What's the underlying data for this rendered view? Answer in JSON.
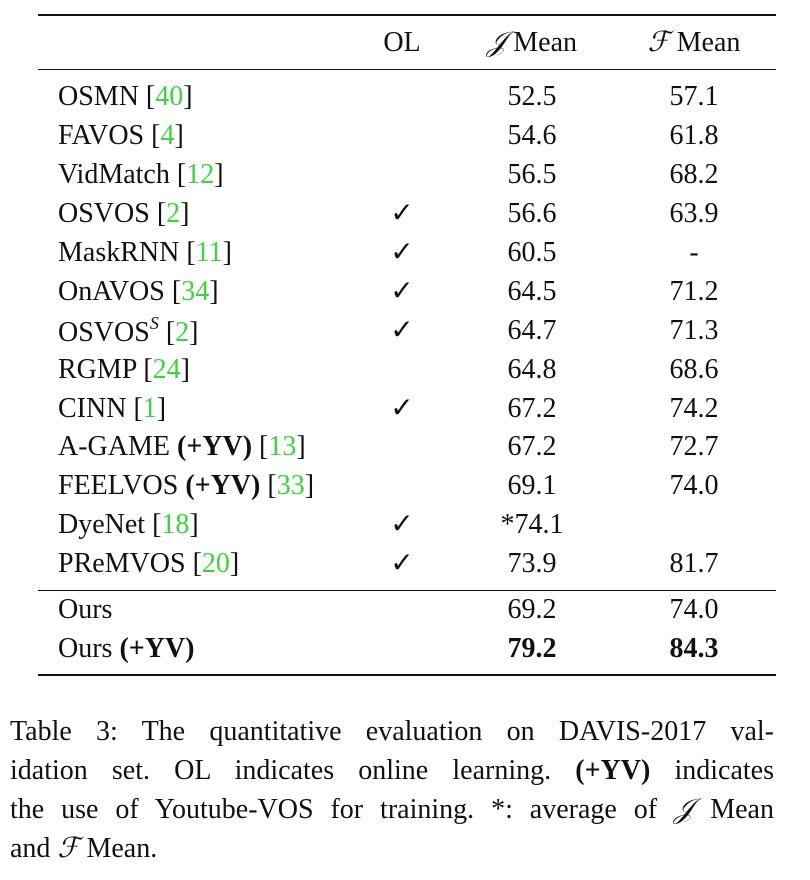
{
  "table": {
    "headers": {
      "method": "",
      "ol": "OL",
      "j_symbol": "𝒥",
      "j_text": " Mean",
      "f_symbol": "ℱ",
      "f_text": " Mean"
    },
    "check_glyph": "✓",
    "rows": [
      {
        "name": "OSMN",
        "suffix": "",
        "cite": "40",
        "ol": "",
        "j": "52.5",
        "f": "57.1"
      },
      {
        "name": "FAVOS",
        "suffix": "",
        "cite": "4",
        "ol": "",
        "j": "54.6",
        "f": "61.8"
      },
      {
        "name": "VidMatch",
        "suffix": "",
        "cite": "12",
        "ol": "",
        "j": "56.5",
        "f": "68.2"
      },
      {
        "name": "OSVOS",
        "suffix": "",
        "cite": "2",
        "ol": "✓",
        "j": "56.6",
        "f": "63.9"
      },
      {
        "name": "MaskRNN",
        "suffix": "",
        "cite": "11",
        "ol": "✓",
        "j": "60.5",
        "f": "-"
      },
      {
        "name": "OnAVOS",
        "suffix": "",
        "cite": "34",
        "ol": "✓",
        "j": "64.5",
        "f": "71.2"
      },
      {
        "name": "OSVOS",
        "sup": "S",
        "suffix": "",
        "cite": "2",
        "ol": "✓",
        "j": "64.7",
        "f": "71.3"
      },
      {
        "name": "RGMP",
        "suffix": "",
        "cite": "24",
        "ol": "",
        "j": "64.8",
        "f": "68.6"
      },
      {
        "name": "CINN",
        "suffix": "",
        "cite": "1",
        "ol": "✓",
        "j": "67.2",
        "f": "74.2"
      },
      {
        "name": "A-GAME",
        "suffix": "(+YV)",
        "cite": "13",
        "ol": "",
        "j": "67.2",
        "f": "72.7"
      },
      {
        "name": "FEELVOS",
        "suffix": "(+YV)",
        "cite": "33",
        "ol": "",
        "j": "69.1",
        "f": "74.0"
      },
      {
        "name": "DyeNet",
        "suffix": "",
        "cite": "18",
        "ol": "✓",
        "j": "*74.1",
        "f": ""
      },
      {
        "name": "PReMVOS",
        "suffix": "",
        "cite": "20",
        "ol": "✓",
        "j": "73.9",
        "f": "81.7"
      }
    ],
    "ours": [
      {
        "name": "Ours",
        "suffix": "",
        "j": "69.2",
        "f": "74.0",
        "bold": false
      },
      {
        "name": "Ours",
        "suffix": "(+YV)",
        "j": "79.2",
        "f": "84.3",
        "bold": true
      }
    ]
  },
  "caption": {
    "line1": "Table 3: The quantitative evaluation on DAVIS-2017 val-",
    "line2": "idation set. OL indicates online learning.",
    "line2_bold": "(+YV)",
    "line2_end": " indicates",
    "line3": "the use of Youtube-VOS for training. *: average of ",
    "line3_j": "𝒥",
    "line3_end": " Mean",
    "line4_f": "ℱ",
    "line4_start": "and ",
    "line4_end": " Mean."
  },
  "colors": {
    "citation": "#3fd13f",
    "text": "#111111"
  }
}
